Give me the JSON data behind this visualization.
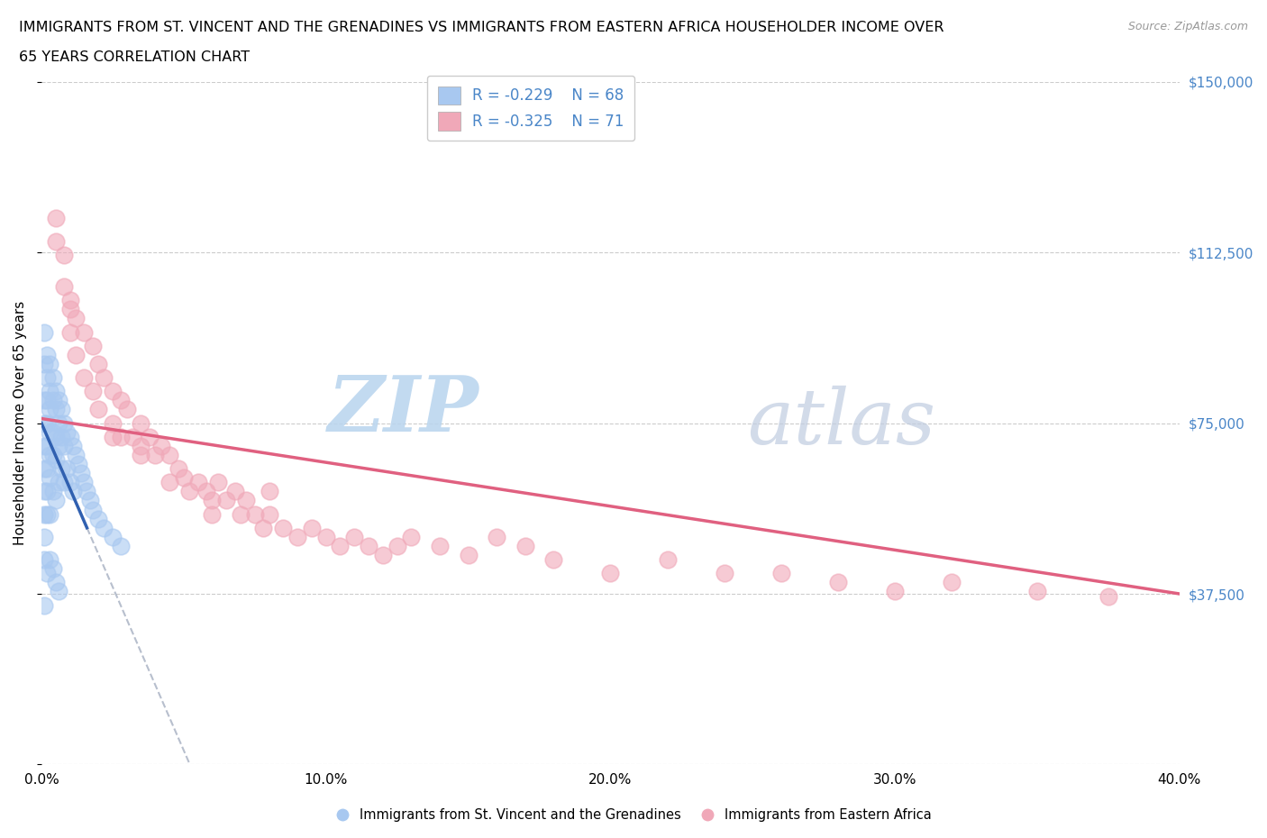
{
  "title_line1": "IMMIGRANTS FROM ST. VINCENT AND THE GRENADINES VS IMMIGRANTS FROM EASTERN AFRICA HOUSEHOLDER INCOME OVER",
  "title_line2": "65 YEARS CORRELATION CHART",
  "source": "Source: ZipAtlas.com",
  "ylabel": "Householder Income Over 65 years",
  "xlim": [
    0.0,
    0.4
  ],
  "ylim": [
    0,
    150000
  ],
  "yticks": [
    0,
    37500,
    75000,
    112500,
    150000
  ],
  "ytick_labels": [
    "",
    "$37,500",
    "$75,000",
    "$112,500",
    "$150,000"
  ],
  "xticks": [
    0.0,
    0.1,
    0.2,
    0.3,
    0.4
  ],
  "xtick_labels": [
    "0.0%",
    "10.0%",
    "20.0%",
    "30.0%",
    "40.0%"
  ],
  "color_blue": "#a8c8f0",
  "color_pink": "#f0a8b8",
  "color_trendline_blue": "#3060b0",
  "color_trendline_pink": "#e06080",
  "color_trendline_gray": "#b0b8c8",
  "watermark_zip": "ZIP",
  "watermark_atlas": "atlas",
  "blue_x": [
    0.001,
    0.001,
    0.001,
    0.001,
    0.001,
    0.001,
    0.001,
    0.002,
    0.002,
    0.002,
    0.002,
    0.002,
    0.002,
    0.002,
    0.003,
    0.003,
    0.003,
    0.003,
    0.003,
    0.003,
    0.003,
    0.004,
    0.004,
    0.004,
    0.004,
    0.004,
    0.005,
    0.005,
    0.005,
    0.005,
    0.005,
    0.006,
    0.006,
    0.006,
    0.006,
    0.007,
    0.007,
    0.007,
    0.008,
    0.008,
    0.008,
    0.009,
    0.009,
    0.01,
    0.01,
    0.011,
    0.011,
    0.012,
    0.013,
    0.014,
    0.015,
    0.016,
    0.017,
    0.018,
    0.02,
    0.022,
    0.025,
    0.028,
    0.003,
    0.004,
    0.005,
    0.006,
    0.002,
    0.002,
    0.001,
    0.001,
    0.001,
    0.001
  ],
  "blue_y": [
    80000,
    88000,
    75000,
    70000,
    65000,
    60000,
    55000,
    85000,
    80000,
    75000,
    70000,
    65000,
    60000,
    55000,
    88000,
    82000,
    78000,
    73000,
    68000,
    63000,
    55000,
    85000,
    80000,
    73000,
    68000,
    60000,
    82000,
    78000,
    72000,
    67000,
    58000,
    80000,
    75000,
    70000,
    62000,
    78000,
    72000,
    65000,
    75000,
    70000,
    62000,
    73000,
    65000,
    72000,
    62000,
    70000,
    60000,
    68000,
    66000,
    64000,
    62000,
    60000,
    58000,
    56000,
    54000,
    52000,
    50000,
    48000,
    45000,
    43000,
    40000,
    38000,
    90000,
    42000,
    95000,
    50000,
    45000,
    35000
  ],
  "pink_x": [
    0.005,
    0.005,
    0.008,
    0.008,
    0.01,
    0.01,
    0.012,
    0.012,
    0.015,
    0.015,
    0.018,
    0.018,
    0.02,
    0.02,
    0.022,
    0.025,
    0.025,
    0.028,
    0.028,
    0.03,
    0.032,
    0.035,
    0.035,
    0.038,
    0.04,
    0.042,
    0.045,
    0.045,
    0.048,
    0.05,
    0.052,
    0.055,
    0.058,
    0.06,
    0.062,
    0.065,
    0.068,
    0.07,
    0.072,
    0.075,
    0.078,
    0.08,
    0.085,
    0.09,
    0.095,
    0.1,
    0.105,
    0.11,
    0.115,
    0.12,
    0.125,
    0.13,
    0.14,
    0.15,
    0.16,
    0.17,
    0.18,
    0.2,
    0.22,
    0.24,
    0.26,
    0.28,
    0.3,
    0.32,
    0.35,
    0.375,
    0.025,
    0.035,
    0.06,
    0.08,
    0.01
  ],
  "pink_y": [
    115000,
    120000,
    112000,
    105000,
    102000,
    95000,
    98000,
    90000,
    95000,
    85000,
    92000,
    82000,
    88000,
    78000,
    85000,
    82000,
    75000,
    80000,
    72000,
    78000,
    72000,
    75000,
    68000,
    72000,
    68000,
    70000,
    68000,
    62000,
    65000,
    63000,
    60000,
    62000,
    60000,
    58000,
    62000,
    58000,
    60000,
    55000,
    58000,
    55000,
    52000,
    55000,
    52000,
    50000,
    52000,
    50000,
    48000,
    50000,
    48000,
    46000,
    48000,
    50000,
    48000,
    46000,
    50000,
    48000,
    45000,
    42000,
    45000,
    42000,
    42000,
    40000,
    38000,
    40000,
    38000,
    37000,
    72000,
    70000,
    55000,
    60000,
    100000
  ]
}
